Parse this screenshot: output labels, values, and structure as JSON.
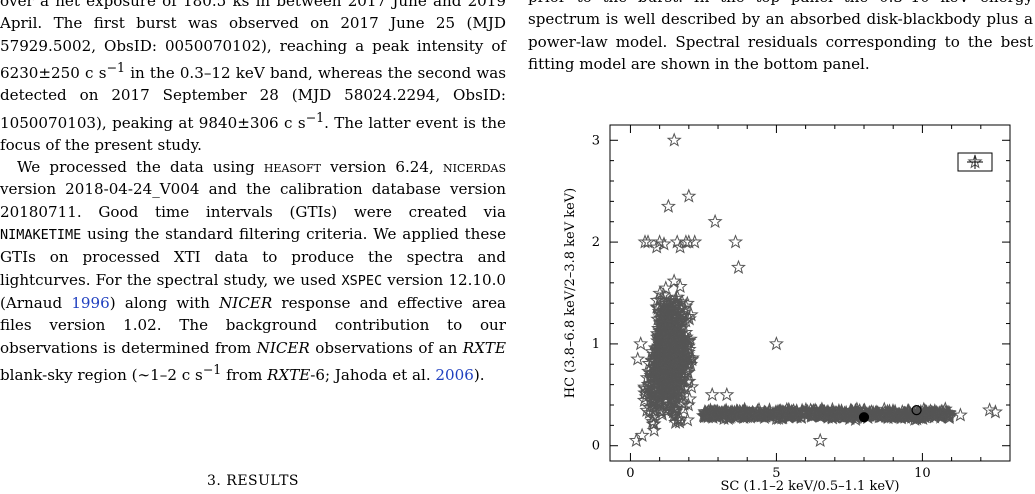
{
  "left_column": {
    "p1": "over a net exposure of 180.5 ks in between 2017 June and 2019 April. The first burst was observed on 2017 June 25 (MJD 57929.5002, ObsID: 0050070102), reaching a peak intensity of 6230±250 c s",
    "p1_sup1": "−1",
    "p1_b": " in the 0.3–12 keV band, whereas the second was detected on 2017 September 28 (MJD 58024.2294, ObsID: 1050070103), peaking at 9840±306 c s",
    "p1_sup2": "−1",
    "p1_c": ". The latter event is the focus of the present study.",
    "p2_a": "We processed the data using ",
    "p2_heasoft": "heasoft",
    "p2_b": " version 6.24, ",
    "p2_nicerdas": "nicerdas",
    "p2_c": " version 2018-04-24_V004 and the calibration database version 20180711. Good time intervals (GTIs) were created via ",
    "p2_nimaketime": "NIMAKETIME",
    "p2_d": " using the standard filtering criteria. We applied these GTIs on processed XTI data to produce the spectra and lightcurves. For the spectral study, we used ",
    "p2_xspec": "XSPEC",
    "p2_e": " version 12.10.0 (Arnaud ",
    "p2_cite1": "1996",
    "p2_f": ") along with ",
    "p2_nicer1": "NICER",
    "p2_g": " response and effective area files version 1.02. The background contribution to our observations is determined from ",
    "p2_nicer2": "NICER",
    "p2_h": " observations of an ",
    "p2_rxte1": "RXTE",
    "p2_i": " blank-sky region (∼1–2 c s",
    "p2_sup": "−1",
    "p2_j": " from ",
    "p2_rxte2": "RXTE",
    "p2_k": "-6; Jahoda et al. ",
    "p2_cite2": "2006",
    "p2_l": ")."
  },
  "section": {
    "number": "3.",
    "title": "RESULTS"
  },
  "right_column": {
    "caption_a": "prior to the burst. In the top panel the 0.3–10 keV energy spectrum is well described by an absorbed disk-blackbody plus a power-law model. Spectral residuals corresponding to the best fitting model are shown in the bottom panel."
  },
  "chart_data": {
    "type": "scatter",
    "xlabel": "SC (1.1–2 keV/0.5–1.1 keV)",
    "ylabel": "HC (3.8–6.8 keV/2–3.8 keV keV)",
    "xlim": [
      -0.7,
      13.0
    ],
    "ylim": [
      -0.15,
      3.15
    ],
    "xticks": [
      0,
      5,
      10
    ],
    "yticks": [
      0,
      1,
      2,
      3
    ],
    "marker_color": "#555555",
    "series": [
      {
        "marker": "star",
        "points": [
          [
            1.5,
            3.0
          ],
          [
            2.0,
            2.45
          ],
          [
            1.3,
            2.35
          ],
          [
            2.9,
            2.2
          ],
          [
            3.6,
            2.0
          ],
          [
            3.7,
            1.75
          ],
          [
            0.5,
            2.0
          ],
          [
            0.6,
            2.0
          ],
          [
            1.0,
            2.0
          ],
          [
            1.15,
            1.98
          ],
          [
            1.6,
            2.0
          ],
          [
            1.9,
            2.0
          ],
          [
            2.0,
            2.0
          ],
          [
            2.2,
            2.0
          ],
          [
            0.9,
            1.95
          ],
          [
            1.7,
            1.95
          ],
          [
            5.0,
            1.0
          ],
          [
            2.8,
            0.5
          ],
          [
            3.3,
            0.5
          ],
          [
            6.5,
            0.05
          ],
          [
            11.3,
            0.3
          ],
          [
            12.3,
            0.35
          ],
          [
            12.5,
            0.33
          ],
          [
            0.2,
            0.05
          ],
          [
            0.4,
            0.1
          ],
          [
            0.35,
            1.0
          ],
          [
            0.25,
            0.85
          ]
        ]
      },
      {
        "marker": "filled-circle",
        "points": [
          [
            8.0,
            0.28
          ]
        ]
      },
      {
        "marker": "open-circle",
        "points": [
          [
            9.8,
            0.35
          ]
        ]
      }
    ],
    "dense_regions": [
      {
        "note": "upper branch cloud",
        "x_range": [
          0.1,
          3.0
        ],
        "y_range": [
          0.1,
          1.9
        ],
        "count": 700
      },
      {
        "note": "lower horizontal branch",
        "x_range": [
          2.5,
          11.0
        ],
        "y_range": [
          0.2,
          0.42
        ],
        "count": 550
      }
    ],
    "legend": {
      "position": "top-right",
      "marker": "star-with-error-bar"
    }
  }
}
